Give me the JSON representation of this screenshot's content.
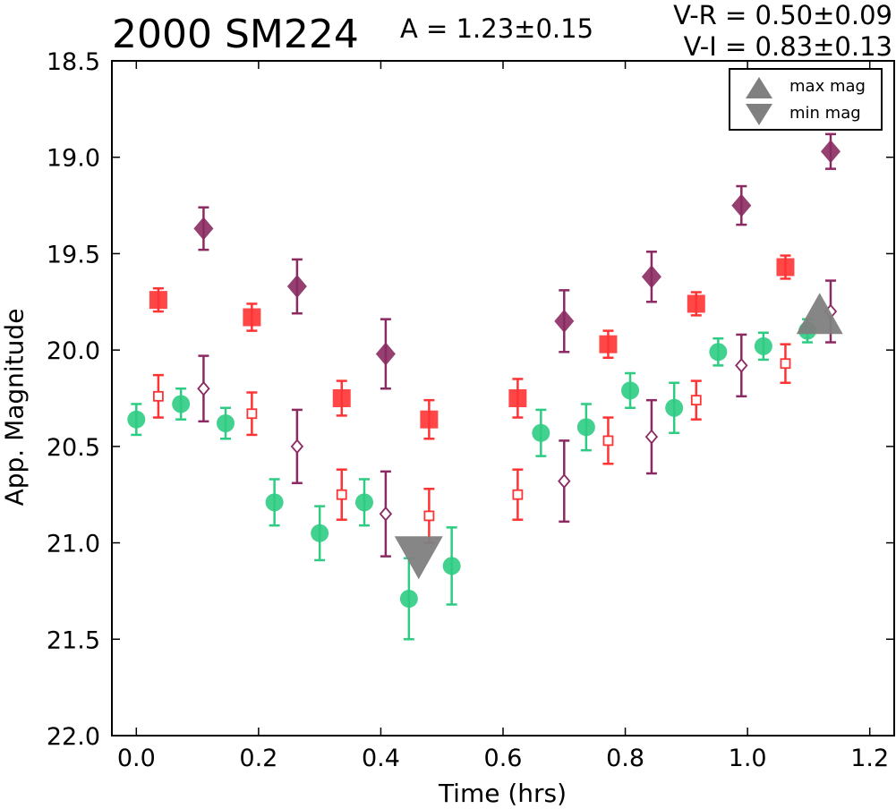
{
  "header": {
    "title": "2000 SM224",
    "amplitude": "A  = 1.23±0.15",
    "color_vr": "V-R = 0.50±0.09",
    "color_vi": "V-I  = 0.83±0.13"
  },
  "legend": {
    "items": [
      {
        "label": "max mag",
        "marker": "triangle-up",
        "color": "#808080"
      },
      {
        "label": "min mag",
        "marker": "triangle-down",
        "color": "#808080"
      }
    ]
  },
  "chart_data": {
    "type": "scatter",
    "xlabel": "Time (hrs)",
    "ylabel": "App. Magnitude",
    "xlim": [
      -0.04,
      1.24
    ],
    "ylim": [
      22.0,
      18.5
    ],
    "y_inverted": true,
    "x_ticks": [
      0.0,
      0.2,
      0.4,
      0.6,
      0.8,
      1.0,
      1.2
    ],
    "x_tick_labels": [
      "0.0",
      "0.2",
      "0.4",
      "0.6",
      "0.8",
      "1.0",
      "1.2"
    ],
    "y_ticks": [
      18.5,
      19.0,
      19.5,
      20.0,
      20.5,
      21.0,
      21.5,
      22.0
    ],
    "y_tick_labels": [
      "18.5",
      "19.0",
      "19.5",
      "20.0",
      "20.5",
      "21.0",
      "21.5",
      "22.0"
    ],
    "grid": false,
    "legend_position": "top-right",
    "series": [
      {
        "marker": "circle",
        "color": "#2ecc82",
        "fill": true,
        "points": [
          {
            "x": 0.0,
            "y": 20.36,
            "err": 0.08
          },
          {
            "x": 0.073,
            "y": 20.28,
            "err": 0.08
          },
          {
            "x": 0.146,
            "y": 20.38,
            "err": 0.08
          },
          {
            "x": 0.226,
            "y": 20.79,
            "err": 0.12
          },
          {
            "x": 0.3,
            "y": 20.95,
            "err": 0.14
          },
          {
            "x": 0.373,
            "y": 20.79,
            "err": 0.12
          },
          {
            "x": 0.446,
            "y": 21.29,
            "err": 0.21
          },
          {
            "x": 0.516,
            "y": 21.12,
            "err": 0.2
          },
          {
            "x": 0.662,
            "y": 20.43,
            "err": 0.12
          },
          {
            "x": 0.736,
            "y": 20.4,
            "err": 0.12
          },
          {
            "x": 0.808,
            "y": 20.21,
            "err": 0.09
          },
          {
            "x": 0.88,
            "y": 20.3,
            "err": 0.13
          },
          {
            "x": 0.952,
            "y": 20.01,
            "err": 0.07
          },
          {
            "x": 1.026,
            "y": 19.98,
            "err": 0.07
          },
          {
            "x": 1.098,
            "y": 19.9,
            "err": 0.06
          }
        ]
      },
      {
        "marker": "square",
        "color": "#ff3333",
        "fill": true,
        "points": [
          {
            "x": 0.036,
            "y": 19.74,
            "err": 0.06
          },
          {
            "x": 0.189,
            "y": 19.83,
            "err": 0.07
          },
          {
            "x": 0.336,
            "y": 20.25,
            "err": 0.09
          },
          {
            "x": 0.479,
            "y": 20.36,
            "err": 0.1
          },
          {
            "x": 0.624,
            "y": 20.25,
            "err": 0.1
          },
          {
            "x": 0.772,
            "y": 19.97,
            "err": 0.07
          },
          {
            "x": 0.916,
            "y": 19.76,
            "err": 0.06
          },
          {
            "x": 1.062,
            "y": 19.57,
            "err": 0.06
          }
        ]
      },
      {
        "marker": "square",
        "color": "#ff3333",
        "fill": false,
        "points": [
          {
            "x": 0.036,
            "y": 20.24,
            "err": 0.11
          },
          {
            "x": 0.189,
            "y": 20.33,
            "err": 0.11
          },
          {
            "x": 0.336,
            "y": 20.75,
            "err": 0.13
          },
          {
            "x": 0.479,
            "y": 20.86,
            "err": 0.14
          },
          {
            "x": 0.624,
            "y": 20.75,
            "err": 0.13
          },
          {
            "x": 0.772,
            "y": 20.47,
            "err": 0.12
          },
          {
            "x": 0.916,
            "y": 20.26,
            "err": 0.1
          },
          {
            "x": 1.062,
            "y": 20.07,
            "err": 0.1
          }
        ]
      },
      {
        "marker": "diamond",
        "color": "#8b2a62",
        "fill": true,
        "points": [
          {
            "x": 0.11,
            "y": 19.37,
            "err": 0.11
          },
          {
            "x": 0.263,
            "y": 19.67,
            "err": 0.14
          },
          {
            "x": 0.408,
            "y": 20.02,
            "err": 0.18
          },
          {
            "x": 0.7,
            "y": 19.85,
            "err": 0.16
          },
          {
            "x": 0.843,
            "y": 19.62,
            "err": 0.13
          },
          {
            "x": 0.99,
            "y": 19.25,
            "err": 0.1
          },
          {
            "x": 1.136,
            "y": 18.97,
            "err": 0.09
          }
        ]
      },
      {
        "marker": "diamond",
        "color": "#8b2a62",
        "fill": false,
        "points": [
          {
            "x": 0.11,
            "y": 20.2,
            "err": 0.17
          },
          {
            "x": 0.263,
            "y": 20.5,
            "err": 0.19
          },
          {
            "x": 0.408,
            "y": 20.85,
            "err": 0.22
          },
          {
            "x": 0.7,
            "y": 20.68,
            "err": 0.21
          },
          {
            "x": 0.843,
            "y": 20.45,
            "err": 0.19
          },
          {
            "x": 0.99,
            "y": 20.08,
            "err": 0.16
          },
          {
            "x": 1.136,
            "y": 19.8,
            "err": 0.16
          }
        ]
      }
    ],
    "annotations": [
      {
        "label": "max mag",
        "marker": "triangle-up",
        "color": "#808080",
        "x": 1.118,
        "y": 19.88
      },
      {
        "label": "min mag",
        "marker": "triangle-down",
        "color": "#808080",
        "x": 0.462,
        "y": 21.04
      }
    ]
  }
}
